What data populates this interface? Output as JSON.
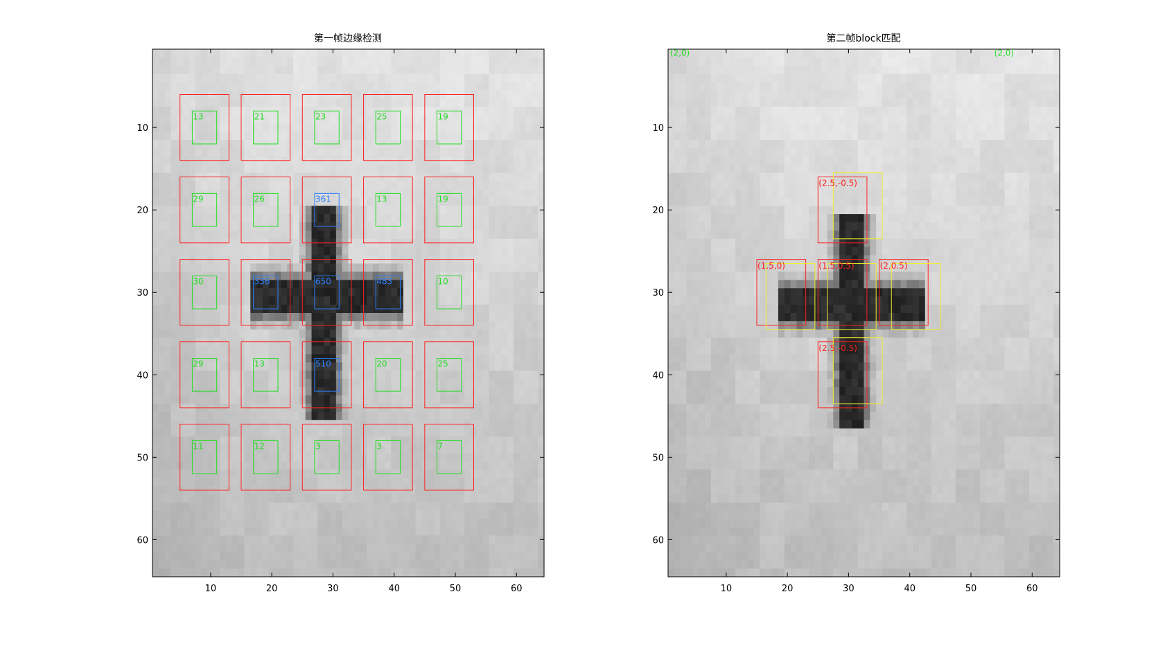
{
  "colors": {
    "red": "#ff2020",
    "green": "#22dd22",
    "blue": "#2a7fff",
    "yellow": "#f2ef2a",
    "axis": "#000000",
    "background_light": "#e8e8e8",
    "cross": "#202020"
  },
  "chart_data": [
    {
      "type": "heatmap",
      "title": "第一帧边缘检测",
      "xlim": [
        0.5,
        64.5
      ],
      "ylim": [
        0.5,
        64.5
      ],
      "y_reversed": true,
      "x_ticks": [
        10,
        20,
        30,
        40,
        50,
        60
      ],
      "y_ticks": [
        10,
        20,
        30,
        40,
        50,
        60
      ],
      "x_tick_labels": [
        "10",
        "20",
        "30",
        "40",
        "50",
        "60"
      ],
      "y_tick_labels": [
        "10",
        "20",
        "30",
        "40",
        "50",
        "60"
      ],
      "cross": {
        "center_x": 28.5,
        "center_y": 30.5,
        "vertical_y": [
          20,
          45
        ],
        "horizontal_x": [
          17,
          41
        ],
        "width": 3
      },
      "outer_blocks": [
        {
          "x": 5,
          "y": 6,
          "w": 8,
          "h": 8
        },
        {
          "x": 15,
          "y": 6,
          "w": 8,
          "h": 8
        },
        {
          "x": 25,
          "y": 6,
          "w": 8,
          "h": 8
        },
        {
          "x": 35,
          "y": 6,
          "w": 8,
          "h": 8
        },
        {
          "x": 45,
          "y": 6,
          "w": 8,
          "h": 8
        },
        {
          "x": 5,
          "y": 16,
          "w": 8,
          "h": 8
        },
        {
          "x": 15,
          "y": 16,
          "w": 8,
          "h": 8
        },
        {
          "x": 25,
          "y": 16,
          "w": 8,
          "h": 8
        },
        {
          "x": 35,
          "y": 16,
          "w": 8,
          "h": 8
        },
        {
          "x": 45,
          "y": 16,
          "w": 8,
          "h": 8
        },
        {
          "x": 5,
          "y": 26,
          "w": 8,
          "h": 8
        },
        {
          "x": 15,
          "y": 26,
          "w": 8,
          "h": 8
        },
        {
          "x": 25,
          "y": 26,
          "w": 8,
          "h": 8
        },
        {
          "x": 35,
          "y": 26,
          "w": 8,
          "h": 8
        },
        {
          "x": 45,
          "y": 26,
          "w": 8,
          "h": 8
        },
        {
          "x": 5,
          "y": 36,
          "w": 8,
          "h": 8
        },
        {
          "x": 15,
          "y": 36,
          "w": 8,
          "h": 8
        },
        {
          "x": 25,
          "y": 36,
          "w": 8,
          "h": 8
        },
        {
          "x": 35,
          "y": 36,
          "w": 8,
          "h": 8
        },
        {
          "x": 45,
          "y": 36,
          "w": 8,
          "h": 8
        },
        {
          "x": 5,
          "y": 46,
          "w": 8,
          "h": 8
        },
        {
          "x": 15,
          "y": 46,
          "w": 8,
          "h": 8
        },
        {
          "x": 25,
          "y": 46,
          "w": 8,
          "h": 8
        },
        {
          "x": 35,
          "y": 46,
          "w": 8,
          "h": 8
        },
        {
          "x": 45,
          "y": 46,
          "w": 8,
          "h": 8
        }
      ],
      "inner_blocks": [
        {
          "x": 7,
          "y": 8,
          "w": 4,
          "h": 4,
          "label": "13",
          "color": "green"
        },
        {
          "x": 17,
          "y": 8,
          "w": 4,
          "h": 4,
          "label": "21",
          "color": "green"
        },
        {
          "x": 27,
          "y": 8,
          "w": 4,
          "h": 4,
          "label": "23",
          "color": "green"
        },
        {
          "x": 37,
          "y": 8,
          "w": 4,
          "h": 4,
          "label": "25",
          "color": "green"
        },
        {
          "x": 47,
          "y": 8,
          "w": 4,
          "h": 4,
          "label": "19",
          "color": "green"
        },
        {
          "x": 7,
          "y": 18,
          "w": 4,
          "h": 4,
          "label": "29",
          "color": "green"
        },
        {
          "x": 17,
          "y": 18,
          "w": 4,
          "h": 4,
          "label": "26",
          "color": "green"
        },
        {
          "x": 27,
          "y": 18,
          "w": 4,
          "h": 4,
          "label": "361",
          "color": "blue"
        },
        {
          "x": 37,
          "y": 18,
          "w": 4,
          "h": 4,
          "label": "13",
          "color": "green"
        },
        {
          "x": 47,
          "y": 18,
          "w": 4,
          "h": 4,
          "label": "19",
          "color": "green"
        },
        {
          "x": 7,
          "y": 28,
          "w": 4,
          "h": 4,
          "label": "30",
          "color": "green"
        },
        {
          "x": 17,
          "y": 28,
          "w": 4,
          "h": 4,
          "label": "336",
          "color": "blue"
        },
        {
          "x": 27,
          "y": 28,
          "w": 4,
          "h": 4,
          "label": "650",
          "color": "blue"
        },
        {
          "x": 37,
          "y": 28,
          "w": 4,
          "h": 4,
          "label": "483",
          "color": "blue"
        },
        {
          "x": 47,
          "y": 28,
          "w": 4,
          "h": 4,
          "label": "10",
          "color": "green"
        },
        {
          "x": 7,
          "y": 38,
          "w": 4,
          "h": 4,
          "label": "29",
          "color": "green"
        },
        {
          "x": 17,
          "y": 38,
          "w": 4,
          "h": 4,
          "label": "13",
          "color": "green"
        },
        {
          "x": 27,
          "y": 38,
          "w": 4,
          "h": 4,
          "label": "510",
          "color": "blue"
        },
        {
          "x": 37,
          "y": 38,
          "w": 4,
          "h": 4,
          "label": "20",
          "color": "green"
        },
        {
          "x": 47,
          "y": 38,
          "w": 4,
          "h": 4,
          "label": "25",
          "color": "green"
        },
        {
          "x": 7,
          "y": 48,
          "w": 4,
          "h": 4,
          "label": "11",
          "color": "green"
        },
        {
          "x": 17,
          "y": 48,
          "w": 4,
          "h": 4,
          "label": "12",
          "color": "green"
        },
        {
          "x": 27,
          "y": 48,
          "w": 4,
          "h": 4,
          "label": "3",
          "color": "green"
        },
        {
          "x": 37,
          "y": 48,
          "w": 4,
          "h": 4,
          "label": "3",
          "color": "green"
        },
        {
          "x": 47,
          "y": 48,
          "w": 4,
          "h": 4,
          "label": "7",
          "color": "green"
        }
      ]
    },
    {
      "type": "heatmap",
      "title": "第二帧block匹配",
      "xlim": [
        0.5,
        64.5
      ],
      "ylim": [
        0.5,
        64.5
      ],
      "y_reversed": true,
      "x_ticks": [
        10,
        20,
        30,
        40,
        50,
        60
      ],
      "y_ticks": [
        10,
        20,
        30,
        40,
        50,
        60
      ],
      "x_tick_labels": [
        "10",
        "20",
        "30",
        "40",
        "50",
        "60"
      ],
      "y_tick_labels": [
        "10",
        "20",
        "30",
        "40",
        "50",
        "60"
      ],
      "cross": {
        "center_x": 30.5,
        "center_y": 31.5,
        "vertical_y": [
          21,
          46
        ],
        "horizontal_x": [
          19,
          42
        ],
        "width": 3
      },
      "corner_labels": [
        {
          "x": 0.7,
          "y": 1.3,
          "text": "(2,0)",
          "color": "green"
        },
        {
          "x": 53.7,
          "y": 1.3,
          "text": "(2,0)",
          "color": "green"
        }
      ],
      "red_blocks": [
        {
          "x": 25,
          "y": 16,
          "w": 8,
          "h": 8,
          "label": "(2.5,-0.5)"
        },
        {
          "x": 15,
          "y": 26,
          "w": 8,
          "h": 8,
          "label": "(1.5,0)"
        },
        {
          "x": 25,
          "y": 26,
          "w": 8,
          "h": 8,
          "label": "(1.5,0.5)"
        },
        {
          "x": 35,
          "y": 26,
          "w": 8,
          "h": 8,
          "label": "(2,0.5)"
        },
        {
          "x": 25,
          "y": 36,
          "w": 8,
          "h": 8,
          "label": "(2.5,-0.5)"
        }
      ],
      "yellow_blocks": [
        {
          "x": 27.5,
          "y": 15.5,
          "w": 8,
          "h": 8
        },
        {
          "x": 16.5,
          "y": 26.5,
          "w": 8,
          "h": 8
        },
        {
          "x": 26.5,
          "y": 26.5,
          "w": 8,
          "h": 8
        },
        {
          "x": 37,
          "y": 26.5,
          "w": 8,
          "h": 8
        },
        {
          "x": 27.5,
          "y": 35.5,
          "w": 8,
          "h": 8
        }
      ]
    }
  ]
}
